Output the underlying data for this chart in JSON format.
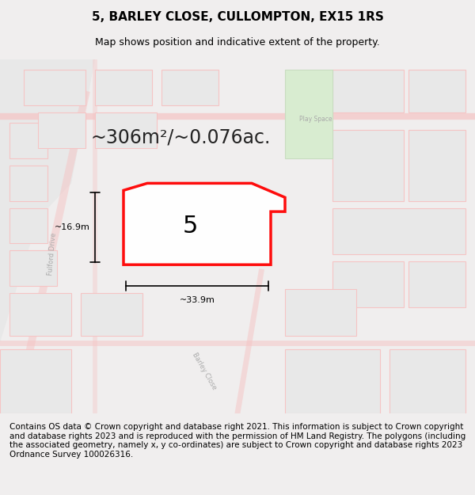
{
  "title": "5, BARLEY CLOSE, CULLOMPTON, EX15 1RS",
  "subtitle": "Map shows position and indicative extent of the property.",
  "area_text": "~306m²/~0.076ac.",
  "dim_width": "~33.9m",
  "dim_height": "~16.9m",
  "property_number": "5",
  "footer": "Contains OS data © Crown copyright and database right 2021. This information is subject to Crown copyright and database rights 2023 and is reproduced with the permission of HM Land Registry. The polygons (including the associated geometry, namely x, y co-ordinates) are subject to Crown copyright and database rights 2023 Ordnance Survey 100026316.",
  "bg_color": "#f0eeee",
  "map_bg": "#ffffff",
  "road_color": "#f5c4c4",
  "road_border": "#e8a0a0",
  "property_fill": "#ffffff",
  "property_outline": "#ff0000",
  "green_area": "#d8ecd0",
  "footer_bg": "#ffffff",
  "title_fontsize": 11,
  "subtitle_fontsize": 9,
  "area_fontsize": 18,
  "label_fontsize": 20,
  "footer_fontsize": 7.5
}
